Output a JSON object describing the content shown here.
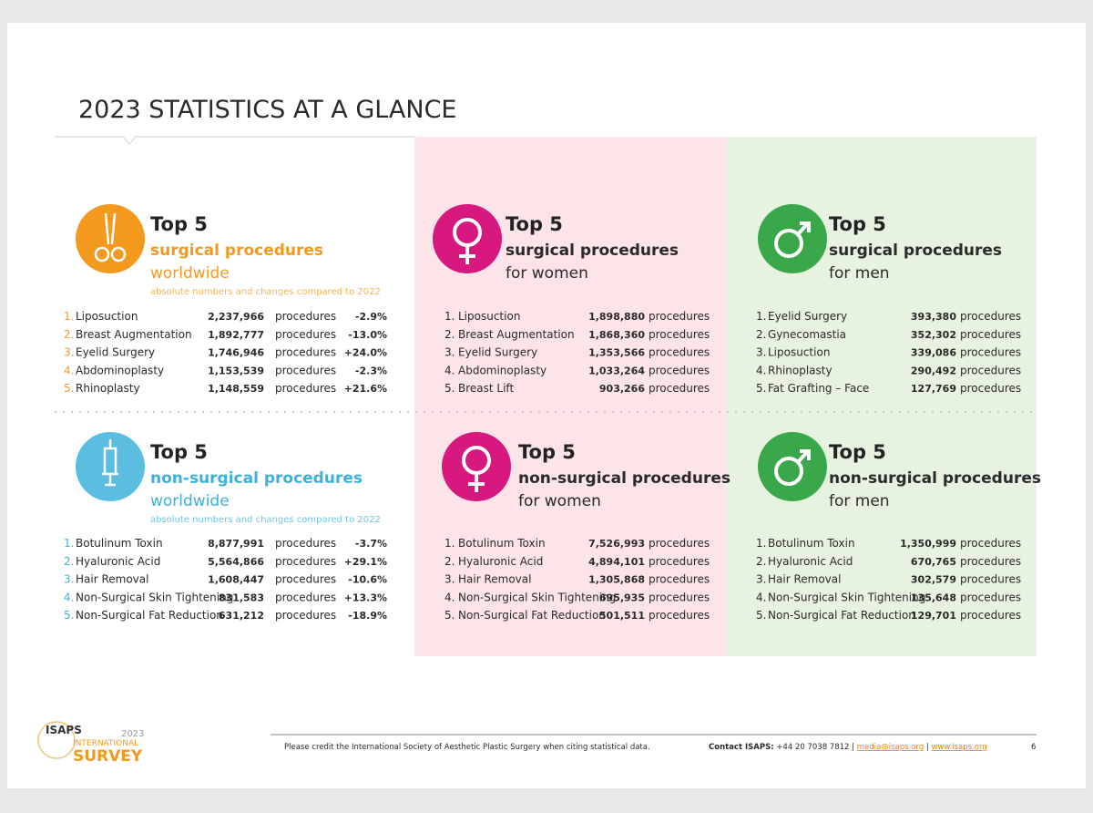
{
  "title": "2023 STATISTICS AT A GLANCE",
  "panels": [
    {
      "heading": [
        "Top 5",
        "surgical procedures",
        "worldwide"
      ],
      "note": "absolute numbers and changes compared to 2022",
      "rows": [
        [
          "1.",
          "Liposuction",
          "2,237,966",
          "procedures",
          "-2.9%"
        ],
        [
          "2.",
          "Breast Augmentation",
          "1,892,777",
          "procedures",
          "-13.0%"
        ],
        [
          "3.",
          "Eyelid Surgery",
          "1,746,946",
          "procedures",
          "+24.0%"
        ],
        [
          "4.",
          "Abdominoplasty",
          "1,153,539",
          "procedures",
          "-2.3%"
        ],
        [
          "5.",
          "Rhinoplasty",
          "1,148,559",
          "procedures",
          "+21.6%"
        ]
      ]
    },
    {
      "heading": [
        "Top 5",
        "surgical procedures",
        "for women"
      ],
      "rows": [
        [
          "1.",
          "Liposuction",
          "1,898,880",
          "procedures"
        ],
        [
          "2.",
          "Breast Augmentation",
          "1,868,360",
          "procedures"
        ],
        [
          "3.",
          "Eyelid Surgery",
          "1,353,566",
          "procedures"
        ],
        [
          "4.",
          "Abdominoplasty",
          "1,033,264",
          "procedures"
        ],
        [
          "5.",
          "Breast Lift",
          "903,266",
          "procedures"
        ]
      ]
    },
    {
      "heading": [
        "Top 5",
        "surgical procedures",
        "for men"
      ],
      "rows": [
        [
          "1.",
          "Eyelid Surgery",
          "393,380",
          "procedures"
        ],
        [
          "2.",
          "Gynecomastia",
          "352,302",
          "procedures"
        ],
        [
          "3.",
          "Liposuction",
          "339,086",
          "procedures"
        ],
        [
          "4.",
          "Rhinoplasty",
          "290,492",
          "procedures"
        ],
        [
          "5.",
          "Fat Grafting – Face",
          "127,769",
          "procedures"
        ]
      ]
    },
    {
      "heading": [
        "Top 5",
        "non-surgical procedures",
        "worldwide"
      ],
      "note": "absolute numbers and changes compared to 2022",
      "rows": [
        [
          "1.",
          "Botulinum Toxin",
          "8,877,991",
          "procedures",
          "-3.7%"
        ],
        [
          "2.",
          "Hyaluronic Acid",
          "5,564,866",
          "procedures",
          "+29.1%"
        ],
        [
          "3.",
          "Hair Removal",
          "1,608,447",
          "procedures",
          "-10.6%"
        ],
        [
          "4.",
          "Non-Surgical Skin Tightening",
          "831,583",
          "procedures",
          "+13.3%"
        ],
        [
          "5.",
          "Non-Surgical Fat Reduction",
          "631,212",
          "procedures",
          "-18.9%"
        ]
      ]
    },
    {
      "heading": [
        "Top 5",
        "non-surgical procedures",
        "for women"
      ],
      "rows": [
        [
          "1.",
          "Botulinum Toxin",
          "7,526,993",
          "procedures"
        ],
        [
          "2.",
          "Hyaluronic Acid",
          "4,894,101",
          "procedures"
        ],
        [
          "3.",
          "Hair Removal",
          "1,305,868",
          "procedures"
        ],
        [
          "4.",
          "Non-Surgical Skin Tightening",
          "695,935",
          "procedures"
        ],
        [
          "5.",
          "Non-Surgical Fat Reduction",
          "501,511",
          "procedures"
        ]
      ]
    },
    {
      "heading": [
        "Top 5",
        "non-surgical procedures",
        "for men"
      ],
      "rows": [
        [
          "1.",
          "Botulinum Toxin",
          "1,350,999",
          "procedures"
        ],
        [
          "2.",
          "Hyaluronic Acid",
          "670,765",
          "procedures"
        ],
        [
          "3.",
          "Hair Removal",
          "302,579",
          "procedures"
        ],
        [
          "4.",
          "Non-Surgical Skin Tightening",
          "135,648",
          "procedures"
        ],
        [
          "5.",
          "Non-Surgical Fat Reduction",
          "129,701",
          "procedures"
        ]
      ]
    }
  ],
  "footer": {
    "logo": [
      "ISAPS",
      "2023",
      "INTERNATIONAL",
      "SURVEY"
    ],
    "credit": "Please credit the International Society of Aesthetic Plastic Surgery when citing statistical data.",
    "contact_label": "Contact ISAPS:",
    "phone": "+44 20 7038 7812 |",
    "email": "media@isaps.org",
    "separator": "|",
    "website": "www.isaps.org",
    "page": "6"
  }
}
